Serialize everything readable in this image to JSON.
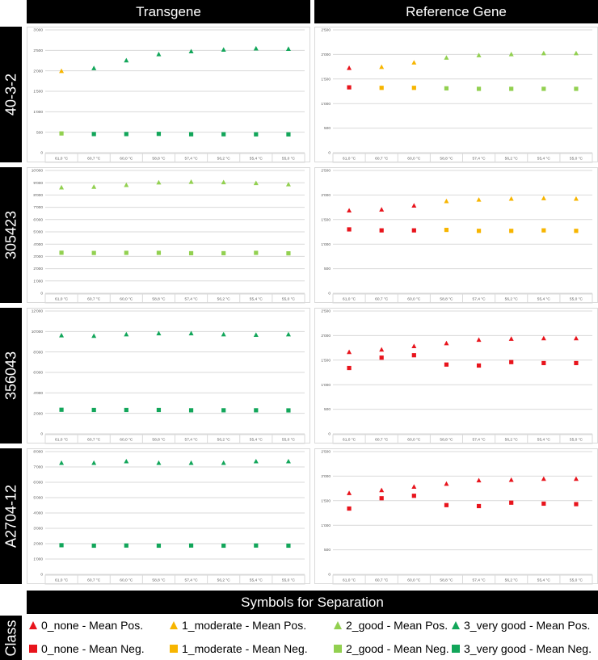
{
  "columns": {
    "transgene": "Transgene",
    "reference": "Reference Gene"
  },
  "rows": [
    "40-3-2",
    "305423",
    "356043",
    "A2704-12"
  ],
  "legend": {
    "title": "Symbols for Separation",
    "class_label": "Class",
    "items": [
      {
        "label": "0_none - Mean Pos.",
        "shape": "triangle",
        "color": "#e8141c"
      },
      {
        "label": "1_moderate - Mean Pos.",
        "shape": "triangle",
        "color": "#f7b500"
      },
      {
        "label": "2_good - Mean Pos.",
        "shape": "triangle",
        "color": "#92d050"
      },
      {
        "label": "3_very good - Mean Pos.",
        "shape": "triangle",
        "color": "#12a65a"
      },
      {
        "label": "0_none - Mean Neg.",
        "shape": "square",
        "color": "#e8141c"
      },
      {
        "label": "1_moderate - Mean Neg.",
        "shape": "square",
        "color": "#f7b500"
      },
      {
        "label": "2_good - Mean Neg.",
        "shape": "square",
        "color": "#92d050"
      },
      {
        "label": "3_very good - Mean Neg.",
        "shape": "square",
        "color": "#12a65a"
      }
    ]
  },
  "chart_data": [
    {
      "type": "scatter",
      "row": "40-3-2",
      "gene": "Transgene",
      "categories": [
        "61,0 °C",
        "60,7 °C",
        "60,0 °C",
        "58,8 °C",
        "57,4 °C",
        "56,2 °C",
        "55,4 °C",
        "55,0 °C"
      ],
      "ylim": [
        0,
        3000
      ],
      "yticks": [
        0,
        500,
        1000,
        1500,
        2000,
        2500,
        3000
      ],
      "yticklabels": [
        "0",
        "500",
        "1'000",
        "1'500",
        "2'000",
        "2'500",
        "3'000"
      ],
      "series": [
        {
          "stat": "pos",
          "values": [
            1990,
            2060,
            2250,
            2400,
            2470,
            2510,
            2540,
            2530
          ],
          "colors": [
            "#f7b500",
            "#12a65a",
            "#12a65a",
            "#12a65a",
            "#12a65a",
            "#12a65a",
            "#12a65a",
            "#12a65a"
          ]
        },
        {
          "stat": "neg",
          "values": [
            470,
            455,
            455,
            460,
            450,
            450,
            448,
            447
          ],
          "colors": [
            "#92d050",
            "#12a65a",
            "#12a65a",
            "#12a65a",
            "#12a65a",
            "#12a65a",
            "#12a65a",
            "#12a65a"
          ]
        }
      ]
    },
    {
      "type": "scatter",
      "row": "40-3-2",
      "gene": "Reference Gene",
      "categories": [
        "61,0 °C",
        "60,7 °C",
        "60,0 °C",
        "58,8 °C",
        "57,4 °C",
        "56,2 °C",
        "55,4 °C",
        "55,0 °C"
      ],
      "ylim": [
        0,
        2500
      ],
      "yticks": [
        0,
        500,
        1000,
        1500,
        2000,
        2500
      ],
      "yticklabels": [
        "0",
        "500",
        "1'000",
        "1'500",
        "2'000",
        "2'500"
      ],
      "series": [
        {
          "stat": "pos",
          "values": [
            1720,
            1740,
            1830,
            1930,
            1980,
            2000,
            2020,
            2020
          ],
          "colors": [
            "#e8141c",
            "#f7b500",
            "#f7b500",
            "#92d050",
            "#92d050",
            "#92d050",
            "#92d050",
            "#92d050"
          ]
        },
        {
          "stat": "neg",
          "values": [
            1330,
            1320,
            1320,
            1310,
            1300,
            1300,
            1300,
            1300
          ],
          "colors": [
            "#e8141c",
            "#f7b500",
            "#f7b500",
            "#92d050",
            "#92d050",
            "#92d050",
            "#92d050",
            "#92d050"
          ]
        }
      ]
    },
    {
      "type": "scatter",
      "row": "305423",
      "gene": "Transgene",
      "categories": [
        "61,0 °C",
        "60,7 °C",
        "60,0 °C",
        "58,8 °C",
        "57,4 °C",
        "56,2 °C",
        "55,4 °C",
        "55,0 °C"
      ],
      "ylim": [
        0,
        10000
      ],
      "yticks": [
        0,
        1000,
        2000,
        3000,
        4000,
        5000,
        6000,
        7000,
        8000,
        9000,
        10000
      ],
      "yticklabels": [
        "0",
        "1'000",
        "2'000",
        "3'000",
        "4'000",
        "5'000",
        "6'000",
        "7'000",
        "8'000",
        "9'000",
        "10'000"
      ],
      "series": [
        {
          "stat": "pos",
          "values": [
            8600,
            8650,
            8800,
            9000,
            9050,
            9020,
            8950,
            8850
          ],
          "colors": [
            "#92d050",
            "#92d050",
            "#92d050",
            "#92d050",
            "#92d050",
            "#92d050",
            "#92d050",
            "#92d050"
          ]
        },
        {
          "stat": "neg",
          "values": [
            3300,
            3280,
            3290,
            3290,
            3260,
            3260,
            3290,
            3250
          ],
          "colors": [
            "#92d050",
            "#92d050",
            "#92d050",
            "#92d050",
            "#92d050",
            "#92d050",
            "#92d050",
            "#92d050"
          ]
        }
      ]
    },
    {
      "type": "scatter",
      "row": "305423",
      "gene": "Reference Gene",
      "categories": [
        "61,0 °C",
        "60,7 °C",
        "60,0 °C",
        "58,8 °C",
        "57,4 °C",
        "56,2 °C",
        "55,4 °C",
        "55,0 °C"
      ],
      "ylim": [
        0,
        2500
      ],
      "yticks": [
        0,
        500,
        1000,
        1500,
        2000,
        2500
      ],
      "yticklabels": [
        "0",
        "500",
        "1'000",
        "1'500",
        "2'000",
        "2'500"
      ],
      "series": [
        {
          "stat": "pos",
          "values": [
            1680,
            1700,
            1780,
            1870,
            1900,
            1920,
            1930,
            1920
          ],
          "colors": [
            "#e8141c",
            "#e8141c",
            "#e8141c",
            "#f7b500",
            "#f7b500",
            "#f7b500",
            "#f7b500",
            "#f7b500"
          ]
        },
        {
          "stat": "neg",
          "values": [
            1300,
            1280,
            1280,
            1290,
            1270,
            1270,
            1280,
            1270
          ],
          "colors": [
            "#e8141c",
            "#e8141c",
            "#e8141c",
            "#f7b500",
            "#f7b500",
            "#f7b500",
            "#f7b500",
            "#f7b500"
          ]
        }
      ]
    },
    {
      "type": "scatter",
      "row": "356043",
      "gene": "Transgene",
      "categories": [
        "61,0 °C",
        "60,7 °C",
        "60,0 °C",
        "58,8 °C",
        "57,4 °C",
        "56,2 °C",
        "55,4 °C",
        "55,0 °C"
      ],
      "ylim": [
        0,
        12000
      ],
      "yticks": [
        0,
        2000,
        4000,
        6000,
        8000,
        10000,
        12000
      ],
      "yticklabels": [
        "0",
        "2'000",
        "4'000",
        "6'000",
        "8'000",
        "10'000",
        "12'000"
      ],
      "series": [
        {
          "stat": "pos",
          "values": [
            9600,
            9550,
            9700,
            9800,
            9800,
            9700,
            9650,
            9700
          ],
          "colors": [
            "#12a65a",
            "#12a65a",
            "#12a65a",
            "#12a65a",
            "#12a65a",
            "#12a65a",
            "#12a65a",
            "#12a65a"
          ]
        },
        {
          "stat": "neg",
          "values": [
            2350,
            2330,
            2330,
            2330,
            2300,
            2300,
            2300,
            2290
          ],
          "colors": [
            "#12a65a",
            "#12a65a",
            "#12a65a",
            "#12a65a",
            "#12a65a",
            "#12a65a",
            "#12a65a",
            "#12a65a"
          ]
        }
      ]
    },
    {
      "type": "scatter",
      "row": "356043",
      "gene": "Reference Gene",
      "categories": [
        "61,0 °C",
        "60,7 °C",
        "60,0 °C",
        "58,8 °C",
        "57,4 °C",
        "56,2 °C",
        "55,4 °C",
        "55,0 °C"
      ],
      "ylim": [
        0,
        2500
      ],
      "yticks": [
        0,
        500,
        1000,
        1500,
        2000,
        2500
      ],
      "yticklabels": [
        "0",
        "500",
        "1'000",
        "1'500",
        "2'000",
        "2'500"
      ],
      "series": [
        {
          "stat": "pos",
          "values": [
            1660,
            1710,
            1780,
            1840,
            1910,
            1930,
            1940,
            1940
          ],
          "colors": [
            "#e8141c",
            "#e8141c",
            "#e8141c",
            "#e8141c",
            "#e8141c",
            "#e8141c",
            "#e8141c",
            "#e8141c"
          ]
        },
        {
          "stat": "neg",
          "values": [
            1340,
            1550,
            1600,
            1410,
            1390,
            1460,
            1440,
            1440
          ],
          "colors": [
            "#e8141c",
            "#e8141c",
            "#e8141c",
            "#e8141c",
            "#e8141c",
            "#e8141c",
            "#e8141c",
            "#e8141c"
          ]
        }
      ]
    },
    {
      "type": "scatter",
      "row": "A2704-12",
      "gene": "Transgene",
      "categories": [
        "61,0 °C",
        "60,7 °C",
        "60,0 °C",
        "58,8 °C",
        "57,4 °C",
        "56,2 °C",
        "55,4 °C",
        "55,0 °C"
      ],
      "ylim": [
        0,
        8000
      ],
      "yticks": [
        0,
        1000,
        2000,
        3000,
        4000,
        5000,
        6000,
        7000,
        8000
      ],
      "yticklabels": [
        "0",
        "1'000",
        "2'000",
        "3'000",
        "4'000",
        "5'000",
        "6'000",
        "7'000",
        "8'000"
      ],
      "series": [
        {
          "stat": "pos",
          "values": [
            7250,
            7250,
            7350,
            7250,
            7250,
            7250,
            7350,
            7350
          ],
          "colors": [
            "#12a65a",
            "#12a65a",
            "#12a65a",
            "#12a65a",
            "#12a65a",
            "#12a65a",
            "#12a65a",
            "#12a65a"
          ]
        },
        {
          "stat": "neg",
          "values": [
            1900,
            1870,
            1880,
            1870,
            1880,
            1870,
            1880,
            1870
          ],
          "colors": [
            "#12a65a",
            "#12a65a",
            "#12a65a",
            "#12a65a",
            "#12a65a",
            "#12a65a",
            "#12a65a",
            "#12a65a"
          ]
        }
      ]
    },
    {
      "type": "scatter",
      "row": "A2704-12",
      "gene": "Reference Gene",
      "categories": [
        "61,0 °C",
        "60,7 °C",
        "60,0 °C",
        "58,8 °C",
        "57,4 °C",
        "56,2 °C",
        "55,4 °C",
        "55,0 °C"
      ],
      "ylim": [
        0,
        2500
      ],
      "yticks": [
        0,
        500,
        1000,
        1500,
        2000,
        2500
      ],
      "yticklabels": [
        "0",
        "500",
        "1'000",
        "1'500",
        "2'000",
        "2'500"
      ],
      "series": [
        {
          "stat": "pos",
          "values": [
            1650,
            1710,
            1780,
            1840,
            1910,
            1920,
            1940,
            1940
          ],
          "colors": [
            "#e8141c",
            "#e8141c",
            "#e8141c",
            "#e8141c",
            "#e8141c",
            "#e8141c",
            "#e8141c",
            "#e8141c"
          ]
        },
        {
          "stat": "neg",
          "values": [
            1340,
            1550,
            1600,
            1410,
            1390,
            1460,
            1440,
            1430
          ],
          "colors": [
            "#e8141c",
            "#e8141c",
            "#e8141c",
            "#e8141c",
            "#e8141c",
            "#e8141c",
            "#e8141c",
            "#e8141c"
          ]
        }
      ]
    }
  ]
}
